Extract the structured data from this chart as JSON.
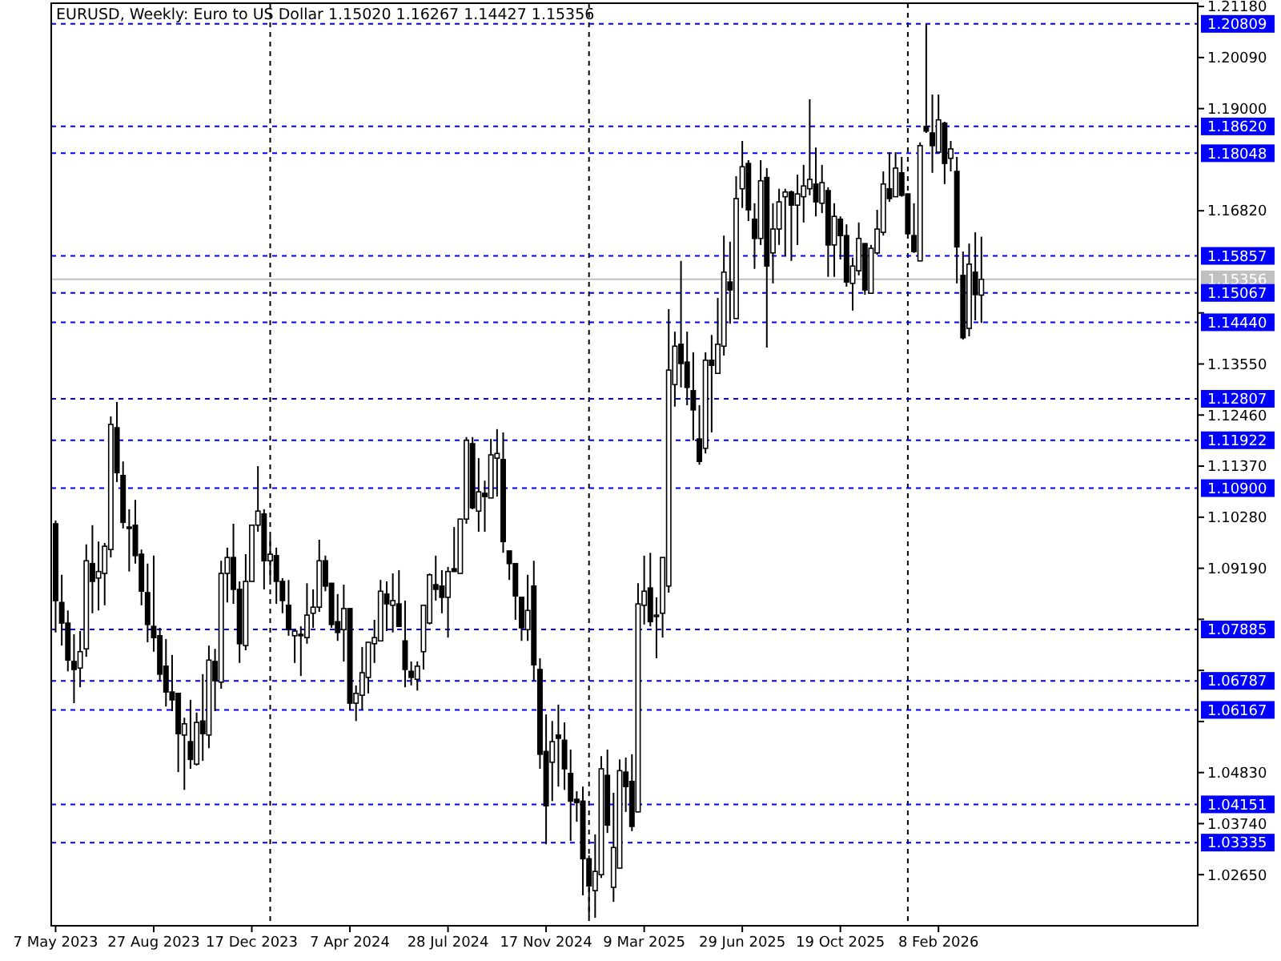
{
  "chart_data": {
    "type": "candlestick",
    "title": "EURUSD, Weekly:  Euro to US Dollar  1.15020 1.16267 1.14427 1.15356",
    "color": "#000000",
    "x": [
      "2023-05-07",
      "2023-05-14",
      "2023-05-21",
      "2023-05-28",
      "2023-06-04",
      "2023-06-11",
      "2023-06-18",
      "2023-06-25",
      "2023-07-02",
      "2023-07-09",
      "2023-07-16",
      "2023-07-23",
      "2023-07-30",
      "2023-08-06",
      "2023-08-13",
      "2023-08-20",
      "2023-08-27",
      "2023-09-03",
      "2023-09-10",
      "2023-09-17",
      "2023-09-24",
      "2023-10-01",
      "2023-10-08",
      "2023-10-15",
      "2023-10-22",
      "2023-10-29",
      "2023-11-05",
      "2023-11-12",
      "2023-11-19",
      "2023-11-26",
      "2023-12-03",
      "2023-12-10",
      "2023-12-17",
      "2023-12-24",
      "2023-12-31",
      "2024-01-07",
      "2024-01-14",
      "2024-01-21",
      "2024-01-28",
      "2024-02-04",
      "2024-02-11",
      "2024-02-18",
      "2024-02-25",
      "2024-03-03",
      "2024-03-10",
      "2024-03-17",
      "2024-03-24",
      "2024-03-31",
      "2024-04-07",
      "2024-04-14",
      "2024-04-21",
      "2024-04-28",
      "2024-05-05",
      "2024-05-12",
      "2024-05-19",
      "2024-05-26",
      "2024-06-02",
      "2024-06-09",
      "2024-06-16",
      "2024-06-23",
      "2024-06-30",
      "2024-07-07",
      "2024-07-14",
      "2024-07-21",
      "2024-07-28",
      "2024-08-04",
      "2024-08-11",
      "2024-08-18",
      "2024-08-25",
      "2024-09-01",
      "2024-09-08",
      "2024-09-15",
      "2024-09-22",
      "2024-09-29",
      "2024-10-06",
      "2024-10-13",
      "2024-10-20",
      "2024-10-27",
      "2024-11-03",
      "2024-11-10",
      "2024-11-17",
      "2024-11-24",
      "2024-12-01",
      "2024-12-08",
      "2024-12-15",
      "2024-12-22",
      "2024-12-29",
      "2025-01-05",
      "2025-01-12",
      "2025-01-19",
      "2025-01-26",
      "2025-02-02",
      "2025-02-09",
      "2025-02-16",
      "2025-02-23",
      "2025-03-02",
      "2025-03-09",
      "2025-03-16",
      "2025-03-23",
      "2025-03-30",
      "2025-04-06",
      "2025-04-13",
      "2025-04-20",
      "2025-04-27",
      "2025-05-04",
      "2025-05-11",
      "2025-05-18",
      "2025-05-25",
      "2025-06-01",
      "2025-06-08",
      "2025-06-15",
      "2025-06-22",
      "2025-06-29",
      "2025-07-06",
      "2025-07-13",
      "2025-07-20",
      "2025-07-27",
      "2025-08-03",
      "2025-08-10",
      "2025-08-17",
      "2025-08-24",
      "2025-08-31",
      "2025-09-07",
      "2025-09-14",
      "2025-09-21",
      "2025-09-28",
      "2025-10-05",
      "2025-10-12",
      "2025-10-19",
      "2025-10-26",
      "2025-11-02",
      "2025-11-09",
      "2025-11-16",
      "2025-11-23",
      "2025-11-30",
      "2025-12-07",
      "2025-12-14",
      "2025-12-21",
      "2025-12-28",
      "2026-01-04",
      "2026-01-11",
      "2026-01-18",
      "2026-01-25",
      "2026-02-01",
      "2026-02-08",
      "2026-02-15",
      "2026-02-22",
      "2026-03-01",
      "2026-03-08",
      "2026-03-15",
      "2026-03-22",
      "2026-03-29"
    ],
    "ohlc": [
      [
        1.1014,
        1.1021,
        1.0782,
        1.085
      ],
      [
        1.0846,
        1.0905,
        1.0754,
        1.0802
      ],
      [
        1.0802,
        1.0829,
        1.0699,
        1.0723
      ],
      [
        1.072,
        1.0778,
        1.0631,
        1.0703
      ],
      [
        1.0706,
        1.0785,
        1.0665,
        1.0741
      ],
      [
        1.0747,
        1.097,
        1.073,
        1.0935
      ],
      [
        1.0929,
        1.1011,
        1.0823,
        1.0891
      ],
      [
        1.0898,
        1.0976,
        1.0829,
        1.0912
      ],
      [
        1.0908,
        1.0973,
        1.084,
        1.0966
      ],
      [
        1.0959,
        1.1243,
        1.0942,
        1.1226
      ],
      [
        1.1219,
        1.1274,
        1.1103,
        1.1123
      ],
      [
        1.1117,
        1.1147,
        1.1004,
        1.1017
      ],
      [
        1.1007,
        1.1045,
        1.0912,
        1.1004
      ],
      [
        1.1011,
        1.1065,
        1.0929,
        1.0946
      ],
      [
        1.0949,
        1.0959,
        1.084,
        1.087
      ],
      [
        1.0867,
        1.0929,
        1.0761,
        1.0799
      ],
      [
        1.0795,
        1.0946,
        1.0741,
        1.0771
      ],
      [
        1.0775,
        1.0792,
        1.0679,
        1.0693
      ],
      [
        1.071,
        1.0768,
        1.0624,
        1.0655
      ],
      [
        1.0655,
        1.0734,
        1.0614,
        1.0638
      ],
      [
        1.0652,
        1.0652,
        1.0484,
        1.0566
      ],
      [
        1.0563,
        1.06,
        1.0446,
        1.0587
      ],
      [
        1.0549,
        1.0638,
        1.0491,
        1.0511
      ],
      [
        1.0501,
        1.0611,
        1.0498,
        1.059
      ],
      [
        1.0593,
        1.0693,
        1.0508,
        1.0566
      ],
      [
        1.0563,
        1.0754,
        1.0535,
        1.0723
      ],
      [
        1.072,
        1.0747,
        1.0614,
        1.0679
      ],
      [
        1.0676,
        1.0935,
        1.0662,
        1.0908
      ],
      [
        1.0908,
        1.0963,
        1.0846,
        1.0942
      ],
      [
        1.0942,
        1.1014,
        1.0843,
        1.0874
      ],
      [
        1.0874,
        1.0891,
        1.0717,
        1.0758
      ],
      [
        1.0754,
        1.0949,
        1.0744,
        1.0891
      ],
      [
        1.0891,
        1.1011,
        1.0891,
        1.1011
      ],
      [
        1.1011,
        1.1137,
        1.0997,
        1.1041
      ],
      [
        1.1035,
        1.1045,
        1.0874,
        1.0935
      ],
      [
        1.0935,
        1.0987,
        1.0894,
        1.0949
      ],
      [
        1.0946,
        1.0963,
        1.0843,
        1.0891
      ],
      [
        1.0891,
        1.0898,
        1.0823,
        1.085
      ],
      [
        1.084,
        1.0894,
        1.0775,
        1.0788
      ],
      [
        1.0775,
        1.0788,
        1.0717,
        1.0785
      ],
      [
        1.0778,
        1.0795,
        1.0689,
        1.0775
      ],
      [
        1.0771,
        1.0887,
        1.0758,
        1.0819
      ],
      [
        1.0823,
        1.0874,
        1.0792,
        1.0836
      ],
      [
        1.0836,
        1.098,
        1.0826,
        1.0935
      ],
      [
        1.0935,
        1.0946,
        1.087,
        1.0881
      ],
      [
        1.0887,
        1.0887,
        1.0792,
        1.0799
      ],
      [
        1.0805,
        1.0864,
        1.0764,
        1.0782
      ],
      [
        1.0788,
        1.0884,
        1.072,
        1.0833
      ],
      [
        1.0833,
        1.0833,
        1.0617,
        1.0631
      ],
      [
        1.0631,
        1.0669,
        1.0593,
        1.0652
      ],
      [
        1.0648,
        1.0751,
        1.0617,
        1.0696
      ],
      [
        1.0686,
        1.0761,
        1.0652,
        1.0761
      ],
      [
        1.0758,
        1.0809,
        1.0717,
        1.0771
      ],
      [
        1.0764,
        1.0894,
        1.0764,
        1.087
      ],
      [
        1.0864,
        1.0891,
        1.0785,
        1.0843
      ],
      [
        1.084,
        1.0908,
        1.0782,
        1.085
      ],
      [
        1.0843,
        1.0915,
        1.0795,
        1.0795
      ],
      [
        1.0764,
        1.085,
        1.0665,
        1.0703
      ],
      [
        1.0699,
        1.072,
        1.0669,
        1.0686
      ],
      [
        1.0682,
        1.072,
        1.0658,
        1.071
      ],
      [
        1.0741,
        1.084,
        1.0703,
        1.084
      ],
      [
        1.0802,
        1.0908,
        1.0799,
        1.0905
      ],
      [
        1.0884,
        1.0946,
        1.085,
        1.0874
      ],
      [
        1.0881,
        1.0915,
        1.0823,
        1.0857
      ],
      [
        1.0857,
        1.0922,
        1.0771,
        1.0912
      ],
      [
        1.0918,
        1.1007,
        1.0912,
        1.0912
      ],
      [
        1.0908,
        1.1024,
        1.0908,
        1.1024
      ],
      [
        1.1024,
        1.1199,
        1.1014,
        1.1192
      ],
      [
        1.1185,
        1.1199,
        1.1045,
        1.1048
      ],
      [
        1.1041,
        1.1154,
        1.0997,
        1.1082
      ],
      [
        1.1079,
        1.1106,
        1.0997,
        1.1072
      ],
      [
        1.1069,
        1.1195,
        1.1069,
        1.1161
      ],
      [
        1.1154,
        1.1216,
        1.1072,
        1.1164
      ],
      [
        1.1151,
        1.1209,
        1.0952,
        1.0976
      ],
      [
        1.0956,
        1.0956,
        1.0894,
        1.0929
      ],
      [
        1.0929,
        1.0929,
        1.0809,
        1.086
      ],
      [
        1.0857,
        1.0857,
        1.0764,
        1.0792
      ],
      [
        1.0788,
        1.0905,
        1.0764,
        1.0829
      ],
      [
        1.0881,
        1.0935,
        1.0679,
        1.0713
      ],
      [
        1.0703,
        1.0727,
        1.0491,
        1.0522
      ],
      [
        1.0528,
        1.0607,
        1.033,
        1.0412
      ],
      [
        1.0505,
        1.0593,
        1.0422,
        1.0549
      ],
      [
        1.0563,
        1.0628,
        1.0453,
        1.0556
      ],
      [
        1.0552,
        1.059,
        1.0446,
        1.0491
      ],
      [
        1.0481,
        1.0532,
        1.0337,
        1.0422
      ],
      [
        1.0426,
        1.0443,
        1.0378,
        1.0419
      ],
      [
        1.0422,
        1.0453,
        1.0221,
        1.0299
      ],
      [
        1.0299,
        1.0306,
        1.0176,
        1.0241
      ],
      [
        1.0231,
        1.0351,
        1.0173,
        1.0272
      ],
      [
        1.0265,
        1.0518,
        1.0258,
        1.0491
      ],
      [
        1.0477,
        1.0532,
        1.0354,
        1.0371
      ],
      [
        1.0238,
        1.044,
        1.0207,
        1.0323
      ],
      [
        1.0279,
        1.0511,
        1.0279,
        1.0487
      ],
      [
        1.0484,
        1.0515,
        1.0399,
        1.0453
      ],
      [
        1.0464,
        1.0522,
        1.0358,
        1.0368
      ],
      [
        1.0399,
        1.0887,
        1.0399,
        1.0843
      ],
      [
        1.084,
        1.0946,
        1.0799,
        1.087
      ],
      [
        1.0877,
        1.0952,
        1.0795,
        1.0805
      ],
      [
        1.0816,
        1.0857,
        1.0727,
        1.0819
      ],
      [
        1.0823,
        1.0942,
        1.0771,
        1.0942
      ],
      [
        1.0881,
        1.1472,
        1.0867,
        1.1342
      ],
      [
        1.1311,
        1.1424,
        1.1264,
        1.1393
      ],
      [
        1.1397,
        1.1575,
        1.1305,
        1.1356
      ],
      [
        1.1359,
        1.1424,
        1.1267,
        1.1305
      ],
      [
        1.1298,
        1.138,
        1.1192,
        1.1257
      ],
      [
        1.1195,
        1.1267,
        1.114,
        1.1147
      ],
      [
        1.1175,
        1.138,
        1.1164,
        1.1363
      ],
      [
        1.1363,
        1.1417,
        1.1209,
        1.1352
      ],
      [
        1.1335,
        1.1496,
        1.1335,
        1.1397
      ],
      [
        1.1393,
        1.1629,
        1.1373,
        1.1551
      ],
      [
        1.153,
        1.1616,
        1.1441,
        1.1513
      ],
      [
        1.1452,
        1.1756,
        1.1452,
        1.1708
      ],
      [
        1.1729,
        1.1831,
        1.1688,
        1.1776
      ],
      [
        1.1783,
        1.179,
        1.166,
        1.1684
      ],
      [
        1.1664,
        1.1698,
        1.1558,
        1.1623
      ],
      [
        1.1623,
        1.179,
        1.1609,
        1.1746
      ],
      [
        1.1753,
        1.1773,
        1.139,
        1.1564
      ],
      [
        1.1592,
        1.1698,
        1.1527,
        1.1643
      ],
      [
        1.1643,
        1.1729,
        1.1609,
        1.1701
      ],
      [
        1.1712,
        1.1729,
        1.1585,
        1.1722
      ],
      [
        1.1722,
        1.1725,
        1.1575,
        1.1694
      ],
      [
        1.1694,
        1.1759,
        1.1609,
        1.1718
      ],
      [
        1.1712,
        1.178,
        1.1657,
        1.1735
      ],
      [
        1.1729,
        1.192,
        1.1715,
        1.1749
      ],
      [
        1.1739,
        1.1817,
        1.167,
        1.1701
      ],
      [
        1.1698,
        1.178,
        1.1677,
        1.1742
      ],
      [
        1.1725,
        1.1732,
        1.1541,
        1.1609
      ],
      [
        1.1609,
        1.1698,
        1.1541,
        1.167
      ],
      [
        1.1664,
        1.167,
        1.1578,
        1.1629
      ],
      [
        1.1629,
        1.1653,
        1.152,
        1.153
      ],
      [
        1.1527,
        1.1582,
        1.1469,
        1.1564
      ],
      [
        1.1554,
        1.1657,
        1.1544,
        1.1623
      ],
      [
        1.1612,
        1.1612,
        1.1503,
        1.1513
      ],
      [
        1.1506,
        1.1609,
        1.1506,
        1.1602
      ],
      [
        1.1592,
        1.1684,
        1.1588,
        1.1643
      ],
      [
        1.1636,
        1.1766,
        1.1629,
        1.1739
      ],
      [
        1.1729,
        1.1807,
        1.1701,
        1.1708
      ],
      [
        1.1712,
        1.1807,
        1.1712,
        1.1773
      ],
      [
        1.1763,
        1.1797,
        1.1712,
        1.1715
      ],
      [
        1.1718,
        1.1718,
        1.1629,
        1.1633
      ],
      [
        1.1629,
        1.1698,
        1.1592,
        1.1595
      ],
      [
        1.1575,
        1.1828,
        1.1575,
        1.1821
      ],
      [
        1.1862,
        1.2081,
        1.1848,
        1.1852
      ],
      [
        1.1848,
        1.193,
        1.1763,
        1.1821
      ],
      [
        1.1807,
        1.193,
        1.1807,
        1.1876
      ],
      [
        1.1869,
        1.1872,
        1.1739,
        1.1783
      ],
      [
        1.1794,
        1.1831,
        1.1766,
        1.1814
      ],
      [
        1.1766,
        1.1797,
        1.1527,
        1.1605
      ],
      [
        1.1544,
        1.1595,
        1.1407,
        1.1411
      ],
      [
        1.1431,
        1.1612,
        1.1414,
        1.1568
      ],
      [
        1.1551,
        1.1636,
        1.1448,
        1.1503
      ],
      [
        1.1502,
        1.16267,
        1.14427,
        1.15356
      ]
    ],
    "xlim": [
      "2023-05-02",
      "2026-12-01"
    ],
    "xticks": [
      {
        "value": "2023-05-07",
        "label": "7 May 2023"
      },
      {
        "value": "2023-08-27",
        "label": "27 Aug 2023"
      },
      {
        "value": "2023-12-17",
        "label": "17 Dec 2023"
      },
      {
        "value": "2024-04-07",
        "label": "7 Apr 2024"
      },
      {
        "value": "2024-07-28",
        "label": "28 Jul 2024"
      },
      {
        "value": "2024-11-17",
        "label": "17 Nov 2024"
      },
      {
        "value": "2025-03-09",
        "label": "9 Mar 2025"
      },
      {
        "value": "2025-06-29",
        "label": "29 Jun 2025"
      },
      {
        "value": "2025-10-19",
        "label": "19 Oct 2025"
      },
      {
        "value": "2026-02-08",
        "label": "8 Feb 2026"
      }
    ],
    "ylim": [
      1.0156,
      1.2125
    ],
    "yticks": [
      {
        "value": 1.2118,
        "label": "1.21180"
      },
      {
        "value": 1.2009,
        "label": "1.20090"
      },
      {
        "value": 1.19,
        "label": "1.19000"
      },
      {
        "value": 1.1682,
        "label": "1.16820"
      },
      {
        "value": 1.1464,
        "label": null
      },
      {
        "value": 1.1355,
        "label": "1.13550"
      },
      {
        "value": 1.1246,
        "label": "1.12460"
      },
      {
        "value": 1.1137,
        "label": "1.11370"
      },
      {
        "value": 1.1028,
        "label": "1.10280"
      },
      {
        "value": 1.0919,
        "label": "1.09190"
      },
      {
        "value": 1.081,
        "label": null
      },
      {
        "value": 1.0701,
        "label": null
      },
      {
        "value": 1.0592,
        "label": null
      },
      {
        "value": 1.0483,
        "label": "1.04830"
      },
      {
        "value": 1.0374,
        "label": "1.03740"
      },
      {
        "value": 1.0265,
        "label": "1.02650"
      }
    ],
    "ref_lines": [
      {
        "axis": "x",
        "value": "2024-01-07",
        "color": "#000000",
        "line_style": "dashed"
      },
      {
        "axis": "x",
        "value": "2025-01-05",
        "color": "#000000",
        "line_style": "dashed"
      },
      {
        "axis": "x",
        "value": "2026-01-04",
        "color": "#000000",
        "line_style": "dashed"
      },
      {
        "axis": "y",
        "value": 1.15356,
        "label": "1.15356",
        "color": "#c0c0c0",
        "line_style": "solid"
      },
      {
        "axis": "y",
        "value": 1.20809,
        "label": "1.20809",
        "color": "#0000ff",
        "line_style": "dashed"
      },
      {
        "axis": "y",
        "value": 1.1862,
        "label": "1.18620",
        "color": "#0000ff",
        "line_style": "dashed"
      },
      {
        "axis": "y",
        "value": 1.18048,
        "label": "1.18048",
        "color": "#0000ff",
        "line_style": "dashed"
      },
      {
        "axis": "y",
        "value": 1.15857,
        "label": "1.15857",
        "color": "#0000ff",
        "line_style": "dashed"
      },
      {
        "axis": "y",
        "value": 1.15067,
        "label": "1.15067",
        "color": "#0000ff",
        "line_style": "dashed"
      },
      {
        "axis": "y",
        "value": 1.1444,
        "label": "1.14440",
        "color": "#0000ff",
        "line_style": "dashed"
      },
      {
        "axis": "y",
        "value": 1.12807,
        "label": "1.12807",
        "color": "#0000ff",
        "line_style": "dashed"
      },
      {
        "axis": "y",
        "value": 1.11922,
        "label": "1.11922",
        "color": "#0000ff",
        "line_style": "dashed"
      },
      {
        "axis": "y",
        "value": 1.109,
        "label": "1.10900",
        "color": "#0000ff",
        "line_style": "dashed"
      },
      {
        "axis": "y",
        "value": 1.07885,
        "label": "1.07885",
        "color": "#0000ff",
        "line_style": "dashed"
      },
      {
        "axis": "y",
        "value": 1.06787,
        "label": "1.06787",
        "color": "#0000ff",
        "line_style": "dashed"
      },
      {
        "axis": "y",
        "value": 1.06167,
        "label": "1.06167",
        "color": "#0000ff",
        "line_style": "dashed"
      },
      {
        "axis": "y",
        "value": 1.04151,
        "label": "1.04151",
        "color": "#0000ff",
        "line_style": "dashed"
      },
      {
        "axis": "y",
        "value": 1.03335,
        "label": "1.03335",
        "color": "#0000ff",
        "line_style": "dashed"
      }
    ]
  }
}
